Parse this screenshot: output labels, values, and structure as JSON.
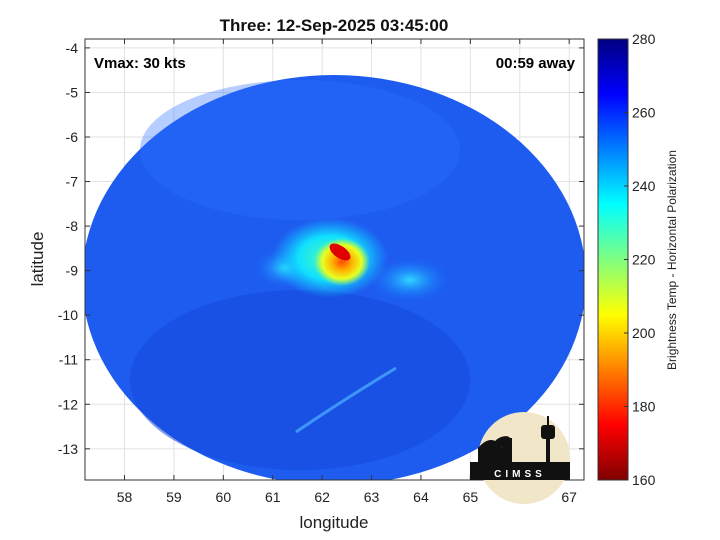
{
  "title": "Three: 12-Sep-2025 03:45:00",
  "vmax_label": "Vmax: 30 kts",
  "time_away_label": "00:59 away",
  "logo_text": "CIMSS",
  "logo_icon": "cimss-observatory-logo",
  "chart_data": {
    "type": "heatmap",
    "title": "Three: 12-Sep-2025 03:45:00",
    "xlabel": "longitude",
    "ylabel": "latitude",
    "xlim": [
      57.2,
      67.3
    ],
    "ylim": [
      -13.7,
      -3.8
    ],
    "x_ticks": [
      {
        "value": 58,
        "label": "58"
      },
      {
        "value": 59,
        "label": "59"
      },
      {
        "value": 60,
        "label": "60"
      },
      {
        "value": 61,
        "label": "61"
      },
      {
        "value": 62,
        "label": "62"
      },
      {
        "value": 63,
        "label": "63"
      },
      {
        "value": 64,
        "label": "64"
      },
      {
        "value": 65,
        "label": "65"
      },
      {
        "value": 66,
        "label": "66"
      },
      {
        "value": 67,
        "label": "67"
      }
    ],
    "y_ticks": [
      {
        "value": -4,
        "label": "-4"
      },
      {
        "value": -5,
        "label": "-5"
      },
      {
        "value": -6,
        "label": "-6"
      },
      {
        "value": -7,
        "label": "-7"
      },
      {
        "value": -8,
        "label": "-8"
      },
      {
        "value": -9,
        "label": "-9"
      },
      {
        "value": -10,
        "label": "-10"
      },
      {
        "value": -11,
        "label": "-11"
      },
      {
        "value": -12,
        "label": "-12"
      },
      {
        "value": -13,
        "label": "-13"
      }
    ],
    "grid": true,
    "colorbar": {
      "label": "Brightness Temp - Horizontal Polarization",
      "min": 160,
      "max": 280,
      "ticks": [
        {
          "value": 280,
          "label": "280"
        },
        {
          "value": 260,
          "label": "260"
        },
        {
          "value": 240,
          "label": "240"
        },
        {
          "value": 220,
          "label": "220"
        },
        {
          "value": 200,
          "label": "200"
        },
        {
          "value": 180,
          "label": "180"
        },
        {
          "value": 160,
          "label": "160"
        }
      ],
      "colormap": "jet"
    },
    "swath": {
      "center_lon": 62.2,
      "center_lat": -8.8,
      "background_temp": 258
    },
    "features": [
      {
        "name": "cold core",
        "lon": 62.38,
        "lat": -8.65,
        "temp": 185
      },
      {
        "name": "convective cluster",
        "lon": 62.35,
        "lat": -8.95,
        "temp": 210
      },
      {
        "name": "west rainband",
        "lon": 61.2,
        "lat": -8.9,
        "temp": 240
      },
      {
        "name": "east rainband",
        "lon": 63.8,
        "lat": -9.3,
        "temp": 242
      }
    ]
  }
}
